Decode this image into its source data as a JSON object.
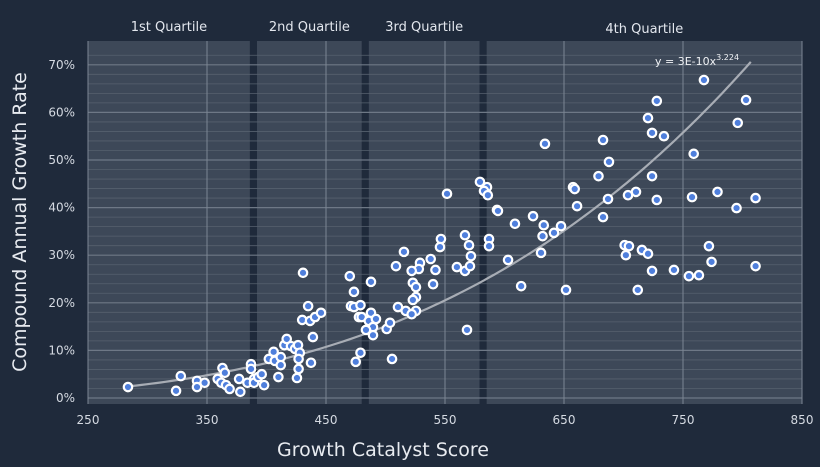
{
  "chart_data": {
    "type": "scatter",
    "xlabel": "Growth Catalyst Score",
    "ylabel": "Compound Annual Growth Rate",
    "xlim": [
      250,
      850
    ],
    "ylim": [
      0,
      72
    ],
    "x_ticks": [
      "250",
      "350",
      "450",
      "550",
      "650",
      "750",
      "850"
    ],
    "y_ticks": [
      "0%",
      "10%",
      "20%",
      "30%",
      "40%",
      "50%",
      "60%",
      "70%"
    ],
    "grid": true,
    "quartiles": [
      {
        "label": "1st Quartile",
        "range": [
          250,
          386
        ]
      },
      {
        "label": "2nd Quartile",
        "range": [
          392,
          480
        ]
      },
      {
        "label": "3rd Quartile",
        "range": [
          486,
          579
        ]
      },
      {
        "label": "4th Quartile",
        "range": [
          585,
          850
        ]
      }
    ],
    "trendline": {
      "label_prefix": "y = 3E-10x",
      "label_exponent": "3.224",
      "coef": 3e-10,
      "exponent": 3.224,
      "x_range": [
        283,
        810
      ]
    },
    "colors": {
      "background": "#1f2a3b",
      "panel": "#3d4858",
      "point_fill": "#4f7fdc",
      "point_stroke": "#ffffff",
      "trend": "#a8adb5"
    },
    "points": [
      [
        283.6,
        2.3
      ],
      [
        324,
        1.5
      ],
      [
        328,
        4.6
      ],
      [
        341.6,
        3.6
      ],
      [
        341.6,
        2.3
      ],
      [
        348,
        3.2
      ],
      [
        359,
        4.0
      ],
      [
        362,
        3.2
      ],
      [
        363,
        6.3
      ],
      [
        365,
        5.3
      ],
      [
        366,
        2.7
      ],
      [
        369,
        1.9
      ],
      [
        377,
        4.0
      ],
      [
        378,
        1.3
      ],
      [
        384,
        3.2
      ],
      [
        387,
        7.1
      ],
      [
        387,
        6.1
      ],
      [
        389.5,
        4.0
      ],
      [
        389.5,
        3.2
      ],
      [
        393,
        4.4
      ],
      [
        396,
        5.0
      ],
      [
        398,
        2.7
      ],
      [
        402,
        8.2
      ],
      [
        406,
        9.7
      ],
      [
        407,
        7.8
      ],
      [
        410,
        4.4
      ],
      [
        412,
        8.6
      ],
      [
        412,
        6.9
      ],
      [
        415,
        11.1
      ],
      [
        417,
        12.4
      ],
      [
        420.6,
        10.9
      ],
      [
        424,
        10.3
      ],
      [
        426.5,
        11.1
      ],
      [
        428,
        9.5
      ],
      [
        425.6,
        4.2
      ],
      [
        427,
        6.1
      ],
      [
        427,
        8.2
      ],
      [
        430,
        16.4
      ],
      [
        430.7,
        26.3
      ],
      [
        435,
        19.3
      ],
      [
        436.6,
        16.2
      ],
      [
        437.4,
        7.4
      ],
      [
        439,
        12.8
      ],
      [
        440.8,
        17.0
      ],
      [
        445.8,
        17.9
      ],
      [
        470,
        25.6
      ],
      [
        473.5,
        22.3
      ],
      [
        471,
        19.3
      ],
      [
        473.5,
        19.1
      ],
      [
        479,
        19.5
      ],
      [
        477.7,
        17.0
      ],
      [
        480,
        17.0
      ],
      [
        475,
        7.6
      ],
      [
        479,
        9.5
      ],
      [
        487.8,
        24.4
      ],
      [
        487.8,
        17.9
      ],
      [
        486,
        16.2
      ],
      [
        489.5,
        14.9
      ],
      [
        492,
        16.6
      ],
      [
        483.6,
        14.3
      ],
      [
        489.5,
        13.2
      ],
      [
        501,
        14.5
      ],
      [
        503.8,
        15.8
      ],
      [
        505.5,
        8.2
      ],
      [
        508.8,
        27.7
      ],
      [
        510.5,
        19.1
      ],
      [
        515.5,
        30.7
      ],
      [
        517,
        18.3
      ],
      [
        546.6,
        33.4
      ],
      [
        545.8,
        31.7
      ],
      [
        566.8,
        34.2
      ],
      [
        570.2,
        32.1
      ],
      [
        571.8,
        29.8
      ],
      [
        538,
        29.2
      ],
      [
        529,
        28.4
      ],
      [
        528,
        27.1
      ],
      [
        522,
        26.7
      ],
      [
        542,
        26.9
      ],
      [
        560,
        27.5
      ],
      [
        566.8,
        26.7
      ],
      [
        571,
        27.7
      ],
      [
        540,
        23.9
      ],
      [
        523,
        24.2
      ],
      [
        525.6,
        23.3
      ],
      [
        525.6,
        21.2
      ],
      [
        523,
        20.6
      ],
      [
        525.6,
        18.3
      ],
      [
        522,
        17.6
      ],
      [
        568.5,
        14.3
      ],
      [
        587,
        33.4
      ],
      [
        587,
        31.9
      ],
      [
        603,
        29.0
      ],
      [
        614,
        23.5
      ],
      [
        630.7,
        30.5
      ],
      [
        632,
        34.0
      ],
      [
        641.6,
        34.7
      ],
      [
        651.7,
        22.7
      ],
      [
        701,
        32.1
      ],
      [
        704.6,
        31.9
      ],
      [
        702,
        30.0
      ],
      [
        715.5,
        31.1
      ],
      [
        720.6,
        30.3
      ],
      [
        724,
        26.7
      ],
      [
        712,
        22.7
      ],
      [
        742.4,
        26.9
      ],
      [
        755,
        25.6
      ],
      [
        763.4,
        25.8
      ],
      [
        771.8,
        31.9
      ],
      [
        774,
        28.6
      ],
      [
        811,
        27.7
      ],
      [
        634,
        53.4
      ],
      [
        767.6,
        66.8
      ],
      [
        728,
        62.4
      ],
      [
        803,
        62.6
      ],
      [
        720.6,
        58.8
      ],
      [
        724,
        55.7
      ],
      [
        734,
        55.0
      ],
      [
        796,
        57.8
      ],
      [
        682.8,
        54.2
      ],
      [
        687.8,
        49.6
      ],
      [
        759,
        51.3
      ],
      [
        679,
        46.6
      ],
      [
        724,
        46.6
      ],
      [
        579.4,
        45.4
      ],
      [
        585.3,
        44.3
      ],
      [
        582.8,
        43.5
      ],
      [
        586,
        42.6
      ],
      [
        551.7,
        42.9
      ],
      [
        657.6,
        44.3
      ],
      [
        659,
        43.9
      ],
      [
        593.7,
        39.5
      ],
      [
        594.5,
        39.3
      ],
      [
        661,
        40.3
      ],
      [
        687,
        41.8
      ],
      [
        703.8,
        42.6
      ],
      [
        710.5,
        43.3
      ],
      [
        728,
        41.6
      ],
      [
        757.6,
        42.2
      ],
      [
        779,
        43.3
      ],
      [
        811,
        42.0
      ],
      [
        795,
        39.9
      ],
      [
        608.8,
        36.6
      ],
      [
        624,
        38.2
      ],
      [
        633,
        36.3
      ],
      [
        647.5,
        36.1
      ],
      [
        682.8,
        38.0
      ]
    ]
  }
}
